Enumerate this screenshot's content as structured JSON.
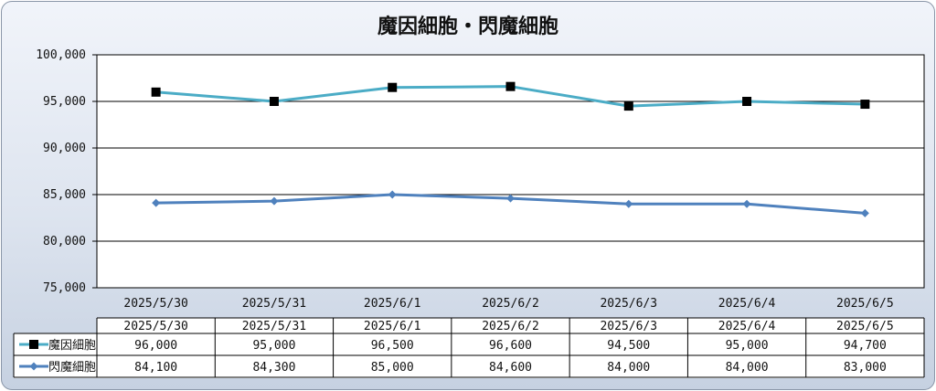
{
  "chart_data": {
    "type": "line",
    "title": "魔因細胞・閃魔細胞",
    "categories": [
      "2025/5/30",
      "2025/5/31",
      "2025/6/1",
      "2025/6/2",
      "2025/6/3",
      "2025/6/4",
      "2025/6/5"
    ],
    "ylim": [
      75000,
      100000
    ],
    "yticks": [
      "100,000",
      "95,000",
      "90,000",
      "85,000",
      "80,000",
      "75,000"
    ],
    "ytick_values": [
      100000,
      95000,
      90000,
      85000,
      80000,
      75000
    ],
    "grid": true,
    "legend": "data-table",
    "series": [
      {
        "name": "魔因細胞",
        "color": "#4bacc6",
        "marker": "square",
        "values": [
          96000,
          95000,
          96500,
          96600,
          94500,
          95000,
          94700
        ],
        "labels": [
          "96,000",
          "95,000",
          "96,500",
          "96,600",
          "94,500",
          "95,000",
          "94,700"
        ]
      },
      {
        "name": "閃魔細胞",
        "color": "#4f81bd",
        "marker": "diamond",
        "values": [
          84100,
          84300,
          85000,
          84600,
          84000,
          84000,
          83000
        ],
        "labels": [
          "84,100",
          "84,300",
          "85,000",
          "84,600",
          "84,000",
          "84,000",
          "83,000"
        ]
      }
    ]
  }
}
